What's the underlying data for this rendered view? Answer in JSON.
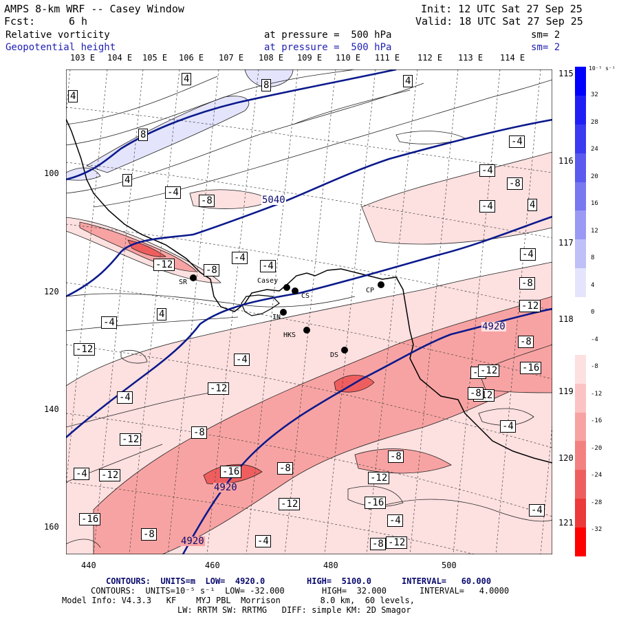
{
  "header": {
    "title": "AMPS 8-km WRF -- Casey Window",
    "fcst_label": "Fcst:",
    "fcst_value": "6 h",
    "init": "Init: 12 UTC Sat 27 Sep 25",
    "valid": "Valid: 18 UTC Sat 27 Sep 25",
    "field1": "Relative vorticity",
    "field2": "Geopotential height",
    "pressure1": "at pressure =  500 hPa",
    "pressure2": "at pressure =  500 hPa",
    "sm1": "sm= 2",
    "sm2": "sm= 2"
  },
  "top_lon_labels": [
    "103 E",
    "104 E",
    "105 E",
    "106 E",
    "107 E",
    "108 E",
    "109 E",
    "110 E",
    "111 E",
    "112 E",
    "113 E",
    "114 E"
  ],
  "right_lon_labels": [
    "115 E",
    "116 E",
    "117 E",
    "118 E",
    "119 E",
    "120 E",
    "121 E"
  ],
  "y_ticks": [
    "100",
    "120",
    "140",
    "160"
  ],
  "x_ticks": [
    "440",
    "460",
    "480",
    "500"
  ],
  "stations": [
    {
      "name": "SR",
      "label": "SR"
    },
    {
      "name": "Casey",
      "label": "Casey"
    },
    {
      "name": "CS",
      "label": "CS"
    },
    {
      "name": "CP",
      "label": "CP"
    },
    {
      "name": "IN",
      "label": "IN"
    },
    {
      "name": "HKS",
      "label": "HKS"
    },
    {
      "name": "DS",
      "label": "DS"
    }
  ],
  "height_labels": [
    "5040",
    "4920",
    "4920",
    "4920"
  ],
  "vort_labels": [
    "4",
    "8",
    "4",
    "4",
    "8",
    "4",
    "-4",
    "-8",
    "-4",
    "-8",
    "-4",
    "-4",
    "4",
    "-12",
    "-8",
    "-4",
    "-4",
    "-4",
    "-8",
    "-12",
    "-8",
    "4",
    "-4",
    "-8",
    "-12",
    "-16",
    "-12",
    "-12",
    "-8",
    "-12",
    "-4",
    "-4",
    "-12",
    "-8",
    "-16",
    "-4",
    "-8",
    "-12",
    "-16",
    "-8",
    "-12",
    "-4",
    "-16",
    "-12",
    "-12",
    "-8",
    "-4",
    "-4",
    "-8",
    "-4"
  ],
  "colorbar": {
    "unit_label": "10⁻⁵ s⁻¹",
    "ticks": [
      "32",
      "28",
      "24",
      "20",
      "16",
      "12",
      "8",
      "4",
      "0",
      "-4",
      "-8",
      "-12",
      "-16",
      "-20",
      "-24",
      "-28",
      "-32"
    ],
    "colors": [
      "#0000ff",
      "#1f1ff5",
      "#3a3af0",
      "#5a5aee",
      "#7878f0",
      "#9a9af4",
      "#c0c0f8",
      "#e4e4fc",
      "#ffffff",
      "#ffffff",
      "#fde0e0",
      "#fbc3c3",
      "#f8a3a3",
      "#f48181",
      "#ef5e5e",
      "#ec3939",
      "#ff0000"
    ]
  },
  "footer": {
    "line1_label1": "CONTOURS:  UNITS=m  LOW=  4920.0",
    "line1_high": "HIGH=  5100.0",
    "line1_interval": "INTERVAL=   60.000",
    "line2_label1": "CONTOURS:  UNITS=10⁻⁵ s⁻¹  LOW= -32.000",
    "line2_high": "HIGH=  32.000",
    "line2_interval": "INTERVAL=   4.0000",
    "line3": "Model Info: V4.3.3   KF    MYJ PBL  Morrison        8.0 km,  60 levels,",
    "line4": "LW: RRTM SW: RRTMG   DIFF: simple KM: 2D Smagor"
  },
  "colors": {
    "height_contour": "#0b1a8c",
    "coast": "#000000",
    "neg_light": "#fde0e0",
    "neg_mid": "#f8a3a3",
    "neg_strong": "#ef5e5e",
    "pos_light": "#e4e4fc"
  }
}
